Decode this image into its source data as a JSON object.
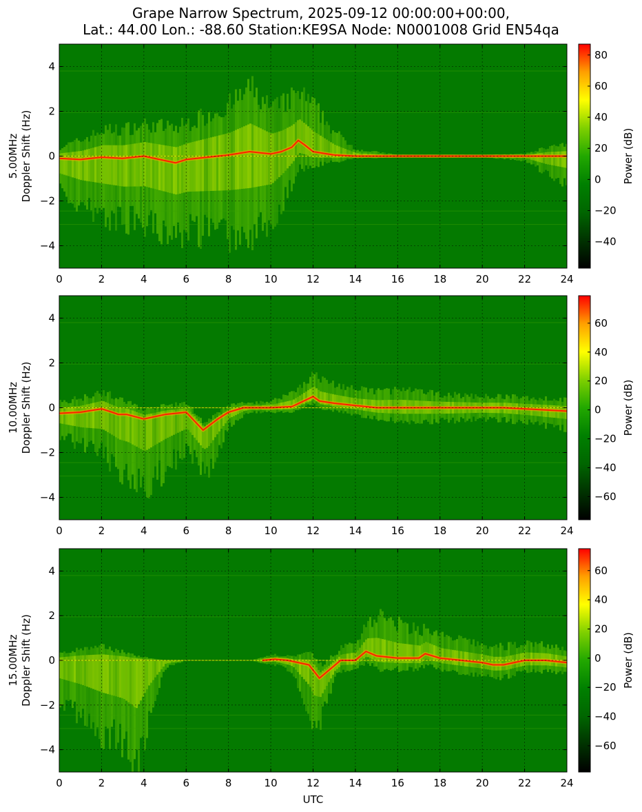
{
  "title_line1": "Grape Narrow Spectrum, 2025-09-12 00:00:00+00:00,",
  "title_line2": "Lat.: 44.00 Lon.: -88.60 Station:KE9SA Node: N0001008 Grid EN54qa",
  "xlabel": "UTC",
  "colorbar_label": "Power (dB)",
  "colormap": [
    "#000000",
    "#003300",
    "#006600",
    "#008000",
    "#22a800",
    "#7fd000",
    "#ffff00",
    "#ffa000",
    "#ff0000"
  ],
  "chart_data": [
    {
      "type": "heatmap",
      "ylabel_line1": "5.00MHz",
      "ylabel_line2": "Doppler Shift (Hz)",
      "xlim": [
        0,
        24
      ],
      "ylim": [
        -5,
        5
      ],
      "xticks": [
        0,
        2,
        4,
        6,
        8,
        10,
        12,
        14,
        16,
        18,
        20,
        22,
        24
      ],
      "yticks": [
        -4,
        -2,
        0,
        2,
        4
      ],
      "grid": true,
      "clim": [
        -57,
        87
      ],
      "cbar_ticks": [
        -40,
        -20,
        0,
        20,
        40,
        60,
        80
      ],
      "carrier_trace": {
        "x": [
          0,
          1,
          2,
          3,
          4,
          5,
          5.5,
          6,
          7,
          8,
          9,
          10,
          10.5,
          11,
          11.3,
          11.6,
          12,
          13,
          14,
          16,
          18,
          20,
          22,
          24
        ],
        "y": [
          -0.1,
          -0.15,
          -0.05,
          -0.1,
          0,
          -0.2,
          -0.3,
          -0.15,
          -0.05,
          0.05,
          0.2,
          0.1,
          0.2,
          0.4,
          0.7,
          0.5,
          0.2,
          0.05,
          0,
          0,
          0,
          0,
          0,
          0
        ]
      },
      "broad_spread_hz": {
        "x": [
          0,
          2,
          4,
          6,
          8,
          9,
          10,
          11,
          12,
          13,
          14,
          16,
          18,
          20,
          22,
          23,
          24
        ],
        "up": [
          0.5,
          1.2,
          1.4,
          1.6,
          2.2,
          2.8,
          2.0,
          2.2,
          2.0,
          1.0,
          0.3,
          0.05,
          0.05,
          0.05,
          0.1,
          0.4,
          0.5
        ],
        "down": [
          1.5,
          2.6,
          3.0,
          3.2,
          3.5,
          3.6,
          3.0,
          1.5,
          0.6,
          0.3,
          0.1,
          0.05,
          0.05,
          0.05,
          0.2,
          0.8,
          1.2
        ]
      }
    },
    {
      "type": "heatmap",
      "ylabel_line1": "10.00MHz",
      "ylabel_line2": "Doppler Shift (Hz)",
      "xlim": [
        0,
        24
      ],
      "ylim": [
        -5,
        5
      ],
      "xticks": [
        0,
        2,
        4,
        6,
        8,
        10,
        12,
        14,
        16,
        18,
        20,
        22,
        24
      ],
      "yticks": [
        -4,
        -2,
        0,
        2,
        4
      ],
      "grid": true,
      "clim": [
        -76,
        79
      ],
      "cbar_ticks": [
        -60,
        -40,
        -20,
        0,
        20,
        40,
        60
      ],
      "carrier_trace": {
        "x": [
          0,
          1,
          2,
          2.5,
          2.8,
          3.2,
          4,
          5,
          6,
          6.8,
          7.5,
          8,
          8.7,
          9,
          10,
          11,
          12,
          12.3,
          13,
          14,
          15,
          16,
          17,
          18,
          19,
          20,
          21,
          22,
          23,
          24
        ],
        "y": [
          -0.25,
          -0.2,
          -0.05,
          -0.2,
          -0.3,
          -0.3,
          -0.5,
          -0.3,
          -0.2,
          -1.0,
          -0.5,
          -0.2,
          0,
          0,
          0,
          0.05,
          0.5,
          0.3,
          0.2,
          0.1,
          0,
          0,
          0,
          0,
          0,
          0,
          0,
          -0.05,
          -0.1,
          -0.15
        ]
      },
      "broad_spread_hz": {
        "x": [
          0,
          2,
          3,
          4,
          5,
          6,
          7,
          8,
          9,
          10,
          12,
          14,
          16,
          18,
          20,
          22,
          24
        ],
        "up": [
          0.5,
          0.8,
          0.6,
          0.4,
          0.4,
          0.4,
          0.3,
          0.3,
          0.2,
          0.3,
          1.0,
          0.7,
          0.8,
          0.6,
          0.5,
          0.5,
          0.5
        ],
        "down": [
          1.0,
          2.0,
          2.6,
          3.2,
          2.4,
          1.6,
          2.0,
          0.6,
          0.2,
          0.2,
          0.3,
          0.4,
          0.6,
          0.6,
          0.5,
          0.6,
          0.8
        ]
      }
    },
    {
      "type": "heatmap",
      "ylabel_line1": "15.00MHz",
      "ylabel_line2": "Doppler Shift (Hz)",
      "xlim": [
        0,
        24
      ],
      "ylim": [
        -5,
        5
      ],
      "xticks": [
        0,
        2,
        4,
        6,
        8,
        10,
        12,
        14,
        16,
        18,
        20,
        22,
        24
      ],
      "yticks": [
        -4,
        -2,
        0,
        2,
        4
      ],
      "grid": true,
      "clim": [
        -78,
        75
      ],
      "cbar_ticks": [
        -60,
        -40,
        -20,
        0,
        20,
        40,
        60
      ],
      "carrier_trace": {
        "x": [
          9.6,
          10.2,
          10.8,
          11.8,
          12.3,
          13.3,
          14,
          14.5,
          15,
          16,
          17,
          17.3,
          18,
          19,
          20,
          20.5,
          21,
          22,
          23,
          24
        ],
        "y": [
          0,
          0.05,
          0,
          -0.2,
          -0.8,
          0,
          0,
          0.4,
          0.2,
          0.1,
          0.1,
          0.3,
          0.1,
          0,
          -0.1,
          -0.2,
          -0.2,
          0,
          0,
          -0.1
        ]
      },
      "broad_spread_hz": {
        "x": [
          0,
          1,
          2,
          3,
          3.6,
          4.2,
          5,
          6,
          9,
          10,
          11,
          12,
          13,
          14,
          15,
          16,
          18,
          20,
          22,
          24
        ],
        "up": [
          0.3,
          0.5,
          0.6,
          0.4,
          0.2,
          0.1,
          0,
          0,
          0,
          0.2,
          0.2,
          0.6,
          0.5,
          0.8,
          1.8,
          1.5,
          1.0,
          0.8,
          0.8,
          0.6
        ],
        "down": [
          1.8,
          2.4,
          3.2,
          3.8,
          4.8,
          2.5,
          0.3,
          0,
          0,
          0.2,
          0.5,
          2.5,
          0.5,
          0.4,
          0.6,
          0.5,
          0.5,
          0.6,
          0.5,
          0.5
        ]
      }
    }
  ]
}
